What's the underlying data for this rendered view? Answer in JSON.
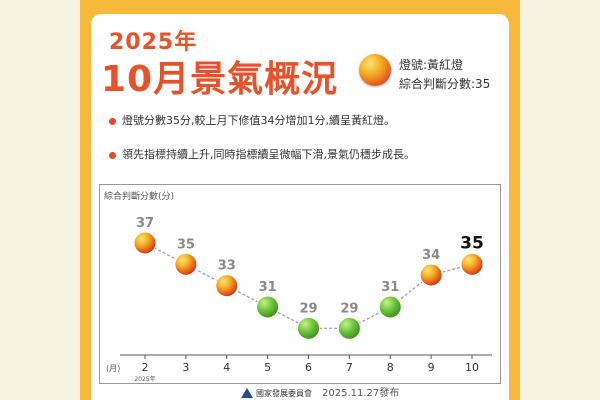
{
  "header": {
    "year": "2025年",
    "title": "10月景氣概況",
    "status_line": "燈號:黃紅燈",
    "score_line": "綜合判斷分數:35"
  },
  "bullets": [
    "燈號分數35分,較上月下修值34分增加1分,續呈黃紅燈。",
    "領先指標持續上升,同時指標續呈微幅下滑,景氣仍穩步成長。"
  ],
  "chart_data": {
    "type": "line",
    "ylabel": "綜合判斷分數(分)",
    "xlabel": "(月)",
    "x_sublabel": "2025年",
    "categories": [
      "2",
      "3",
      "4",
      "5",
      "6",
      "7",
      "8",
      "9",
      "10"
    ],
    "values": [
      37,
      35,
      33,
      31,
      29,
      29,
      31,
      34,
      35
    ],
    "lights": [
      "yellow-red",
      "yellow-red",
      "yellow-red",
      "green",
      "green",
      "green",
      "green",
      "yellow-red",
      "yellow-red"
    ],
    "highlight_last": true,
    "ylim": [
      27,
      39
    ],
    "colors": {
      "green": "#5bb52e",
      "yellow-red": "#e4511e",
      "line": "#9a9a9a"
    }
  },
  "footer": {
    "org": "國家發展委員會",
    "date": "2025.11.27發布"
  }
}
